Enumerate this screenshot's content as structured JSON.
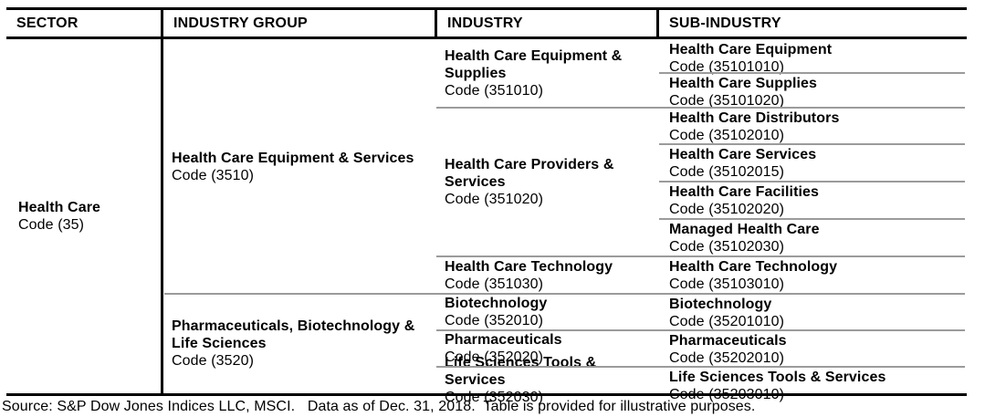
{
  "header": {
    "columns": [
      "SECTOR",
      "INDUSTRY  GROUP",
      "INDUSTRY",
      "SUB-INDUSTRY"
    ]
  },
  "sector": {
    "name": "Health Care",
    "code": "Code (35)"
  },
  "groups": [
    {
      "name": "Health Care Equipment & Services",
      "code": "Code (3510)",
      "industries": [
        {
          "name": "Health Care Equipment & Supplies",
          "code": "Code (351010)",
          "subs": [
            {
              "name": "Health Care Equipment",
              "code": "Code (35101010)"
            },
            {
              "name": "Health Care Supplies",
              "code": "Code (35101020)"
            }
          ]
        },
        {
          "name": "Health Care Providers & Services",
          "code": "Code (351020)",
          "subs": [
            {
              "name": "Health Care Distributors",
              "code": "Code (35102010)"
            },
            {
              "name": "Health Care Services",
              "code": "Code (35102015)"
            },
            {
              "name": "Health Care Facilities",
              "code": "Code (35102020)"
            },
            {
              "name": "Managed Health Care",
              "code": "Code (35102030)"
            }
          ]
        },
        {
          "name": "Health Care Technology",
          "code": "Code (351030)",
          "subs": [
            {
              "name": "Health Care Technology",
              "code": "Code (35103010)"
            }
          ]
        }
      ]
    },
    {
      "name": "Pharmaceuticals, Biotechnology & Life Sciences",
      "code": "Code (3520)",
      "industries": [
        {
          "name": "Biotechnology",
          "code": "Code (352010)",
          "subs": [
            {
              "name": "Biotechnology",
              "code": "Code (35201010)"
            }
          ]
        },
        {
          "name": "Pharmaceuticals",
          "code": "Code (352020)",
          "subs": [
            {
              "name": "Pharmaceuticals",
              "code": "Code (35202010)"
            }
          ]
        },
        {
          "name": "Life Sciences Tools & Services",
          "code": "Code (352030)",
          "subs": [
            {
              "name": "Life Sciences Tools & Services",
              "code": "Code (35203010)"
            }
          ]
        }
      ]
    }
  ],
  "footer": {
    "text": "Source: S&P Dow Jones Indices LLC, MSCI.   Data as of Dec. 31, 2018.  Table is provided for illustrative purposes."
  },
  "colors": {
    "rule_black": "#000000",
    "rule_gray": "#9b9b9b",
    "text": "#000000",
    "background": "#ffffff"
  }
}
